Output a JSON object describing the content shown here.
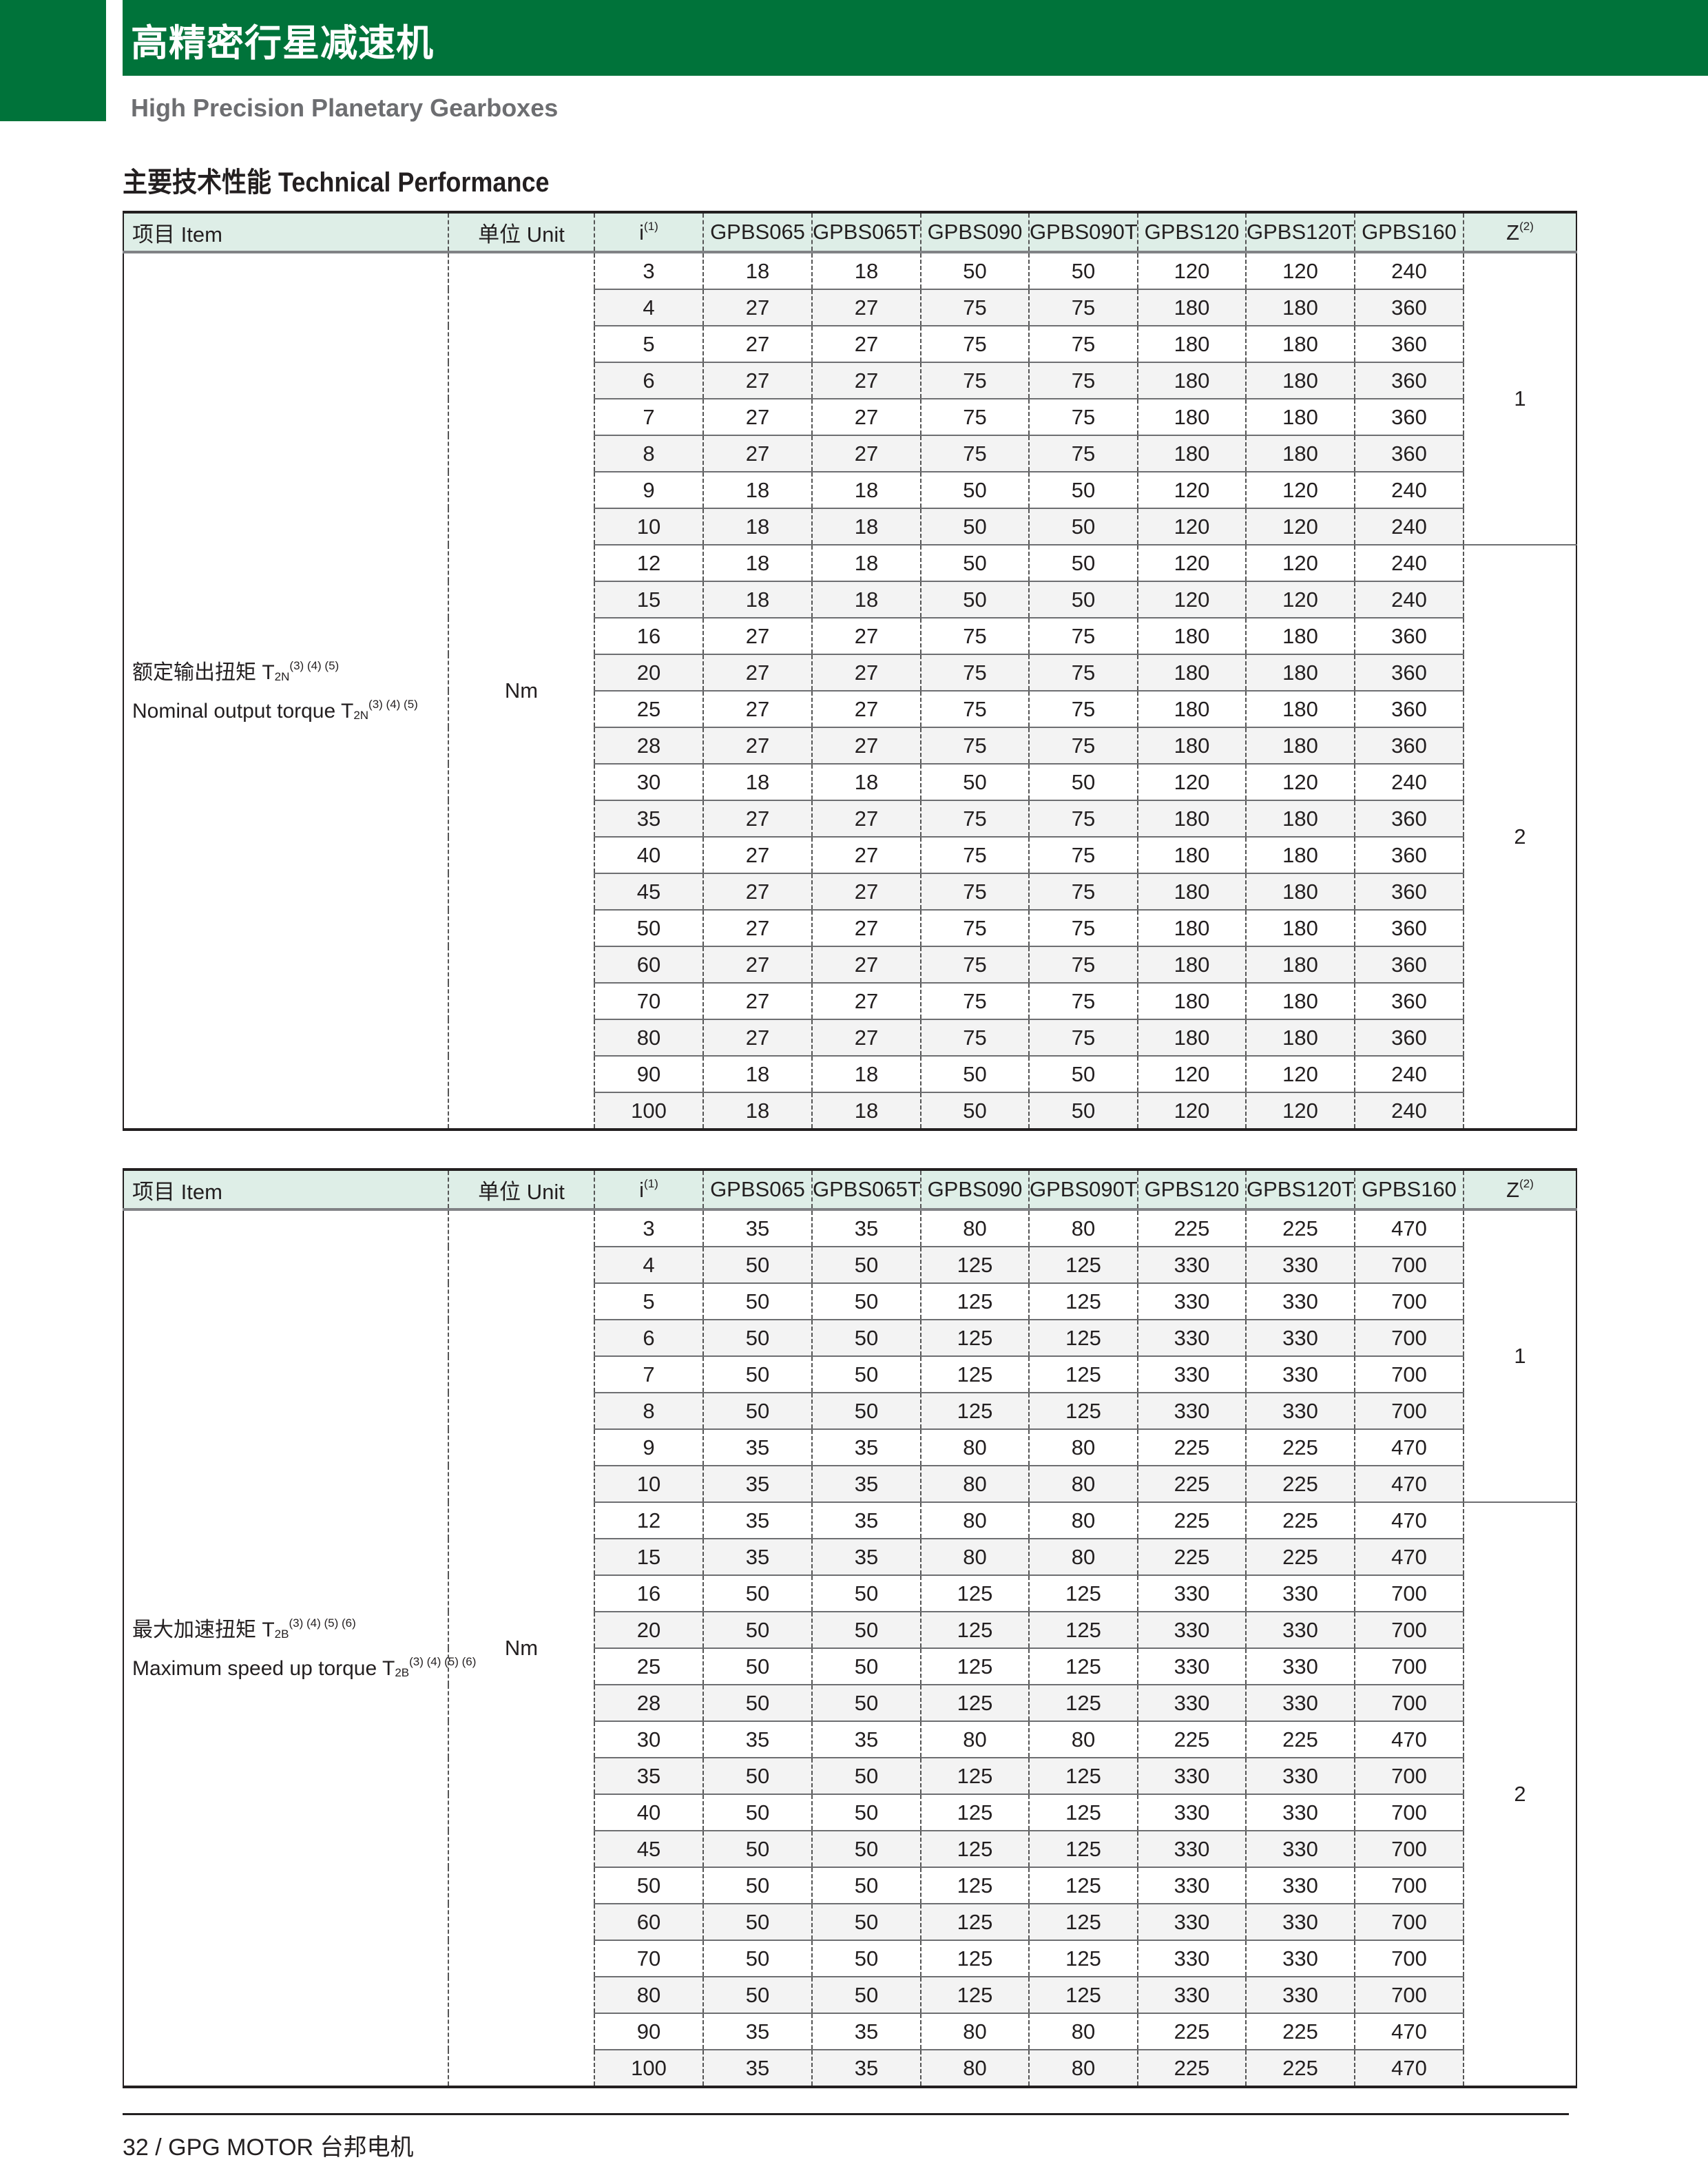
{
  "header": {
    "title_cn": "高精密行星减速机",
    "subtitle": "High Precision Planetary Gearboxes",
    "section_title": "主要技术性能 Technical Performance"
  },
  "colors": {
    "brand_green": "#00733a",
    "header_row_bg": "#deeee7",
    "stripe_bg": "#f3f3f3"
  },
  "columns": {
    "item": "项目 Item",
    "unit": "单位 Unit",
    "ratio": "i",
    "ratio_note": "(1)",
    "models": [
      "GPBS065",
      "GPBS065T",
      "GPBS090",
      "GPBS090T",
      "GPBS120",
      "GPBS120T",
      "GPBS160"
    ],
    "z": "Z",
    "z_note": "(2)"
  },
  "tables": [
    {
      "item_cn": "额定输出扭矩 T",
      "item_cn_sub": "2N",
      "item_cn_notes": "(3) (4) (5)",
      "item_en": "Nominal output torque T",
      "item_en_sub": "2N",
      "item_en_notes": "(3) (4) (5)",
      "unit": "Nm",
      "z_groups": [
        {
          "value": "1",
          "rows": 8
        },
        {
          "value": "2",
          "rows": 16
        }
      ],
      "rows": [
        {
          "i": "3",
          "v": [
            "18",
            "18",
            "50",
            "50",
            "120",
            "120",
            "240"
          ]
        },
        {
          "i": "4",
          "v": [
            "27",
            "27",
            "75",
            "75",
            "180",
            "180",
            "360"
          ]
        },
        {
          "i": "5",
          "v": [
            "27",
            "27",
            "75",
            "75",
            "180",
            "180",
            "360"
          ]
        },
        {
          "i": "6",
          "v": [
            "27",
            "27",
            "75",
            "75",
            "180",
            "180",
            "360"
          ]
        },
        {
          "i": "7",
          "v": [
            "27",
            "27",
            "75",
            "75",
            "180",
            "180",
            "360"
          ]
        },
        {
          "i": "8",
          "v": [
            "27",
            "27",
            "75",
            "75",
            "180",
            "180",
            "360"
          ]
        },
        {
          "i": "9",
          "v": [
            "18",
            "18",
            "50",
            "50",
            "120",
            "120",
            "240"
          ]
        },
        {
          "i": "10",
          "v": [
            "18",
            "18",
            "50",
            "50",
            "120",
            "120",
            "240"
          ]
        },
        {
          "i": "12",
          "v": [
            "18",
            "18",
            "50",
            "50",
            "120",
            "120",
            "240"
          ]
        },
        {
          "i": "15",
          "v": [
            "18",
            "18",
            "50",
            "50",
            "120",
            "120",
            "240"
          ]
        },
        {
          "i": "16",
          "v": [
            "27",
            "27",
            "75",
            "75",
            "180",
            "180",
            "360"
          ]
        },
        {
          "i": "20",
          "v": [
            "27",
            "27",
            "75",
            "75",
            "180",
            "180",
            "360"
          ]
        },
        {
          "i": "25",
          "v": [
            "27",
            "27",
            "75",
            "75",
            "180",
            "180",
            "360"
          ]
        },
        {
          "i": "28",
          "v": [
            "27",
            "27",
            "75",
            "75",
            "180",
            "180",
            "360"
          ]
        },
        {
          "i": "30",
          "v": [
            "18",
            "18",
            "50",
            "50",
            "120",
            "120",
            "240"
          ]
        },
        {
          "i": "35",
          "v": [
            "27",
            "27",
            "75",
            "75",
            "180",
            "180",
            "360"
          ]
        },
        {
          "i": "40",
          "v": [
            "27",
            "27",
            "75",
            "75",
            "180",
            "180",
            "360"
          ]
        },
        {
          "i": "45",
          "v": [
            "27",
            "27",
            "75",
            "75",
            "180",
            "180",
            "360"
          ]
        },
        {
          "i": "50",
          "v": [
            "27",
            "27",
            "75",
            "75",
            "180",
            "180",
            "360"
          ]
        },
        {
          "i": "60",
          "v": [
            "27",
            "27",
            "75",
            "75",
            "180",
            "180",
            "360"
          ]
        },
        {
          "i": "70",
          "v": [
            "27",
            "27",
            "75",
            "75",
            "180",
            "180",
            "360"
          ]
        },
        {
          "i": "80",
          "v": [
            "27",
            "27",
            "75",
            "75",
            "180",
            "180",
            "360"
          ]
        },
        {
          "i": "90",
          "v": [
            "18",
            "18",
            "50",
            "50",
            "120",
            "120",
            "240"
          ]
        },
        {
          "i": "100",
          "v": [
            "18",
            "18",
            "50",
            "50",
            "120",
            "120",
            "240"
          ]
        }
      ]
    },
    {
      "item_cn": "最大加速扭矩 T",
      "item_cn_sub": "2B",
      "item_cn_notes": "(3) (4) (5) (6)",
      "item_en": "Maximum speed up torque T",
      "item_en_sub": "2B",
      "item_en_notes": "(3) (4) (5) (6)",
      "unit": "Nm",
      "z_groups": [
        {
          "value": "1",
          "rows": 8
        },
        {
          "value": "2",
          "rows": 16
        }
      ],
      "rows": [
        {
          "i": "3",
          "v": [
            "35",
            "35",
            "80",
            "80",
            "225",
            "225",
            "470"
          ]
        },
        {
          "i": "4",
          "v": [
            "50",
            "50",
            "125",
            "125",
            "330",
            "330",
            "700"
          ]
        },
        {
          "i": "5",
          "v": [
            "50",
            "50",
            "125",
            "125",
            "330",
            "330",
            "700"
          ]
        },
        {
          "i": "6",
          "v": [
            "50",
            "50",
            "125",
            "125",
            "330",
            "330",
            "700"
          ]
        },
        {
          "i": "7",
          "v": [
            "50",
            "50",
            "125",
            "125",
            "330",
            "330",
            "700"
          ]
        },
        {
          "i": "8",
          "v": [
            "50",
            "50",
            "125",
            "125",
            "330",
            "330",
            "700"
          ]
        },
        {
          "i": "9",
          "v": [
            "35",
            "35",
            "80",
            "80",
            "225",
            "225",
            "470"
          ]
        },
        {
          "i": "10",
          "v": [
            "35",
            "35",
            "80",
            "80",
            "225",
            "225",
            "470"
          ]
        },
        {
          "i": "12",
          "v": [
            "35",
            "35",
            "80",
            "80",
            "225",
            "225",
            "470"
          ]
        },
        {
          "i": "15",
          "v": [
            "35",
            "35",
            "80",
            "80",
            "225",
            "225",
            "470"
          ]
        },
        {
          "i": "16",
          "v": [
            "50",
            "50",
            "125",
            "125",
            "330",
            "330",
            "700"
          ]
        },
        {
          "i": "20",
          "v": [
            "50",
            "50",
            "125",
            "125",
            "330",
            "330",
            "700"
          ]
        },
        {
          "i": "25",
          "v": [
            "50",
            "50",
            "125",
            "125",
            "330",
            "330",
            "700"
          ]
        },
        {
          "i": "28",
          "v": [
            "50",
            "50",
            "125",
            "125",
            "330",
            "330",
            "700"
          ]
        },
        {
          "i": "30",
          "v": [
            "35",
            "35",
            "80",
            "80",
            "225",
            "225",
            "470"
          ]
        },
        {
          "i": "35",
          "v": [
            "50",
            "50",
            "125",
            "125",
            "330",
            "330",
            "700"
          ]
        },
        {
          "i": "40",
          "v": [
            "50",
            "50",
            "125",
            "125",
            "330",
            "330",
            "700"
          ]
        },
        {
          "i": "45",
          "v": [
            "50",
            "50",
            "125",
            "125",
            "330",
            "330",
            "700"
          ]
        },
        {
          "i": "50",
          "v": [
            "50",
            "50",
            "125",
            "125",
            "330",
            "330",
            "700"
          ]
        },
        {
          "i": "60",
          "v": [
            "50",
            "50",
            "125",
            "125",
            "330",
            "330",
            "700"
          ]
        },
        {
          "i": "70",
          "v": [
            "50",
            "50",
            "125",
            "125",
            "330",
            "330",
            "700"
          ]
        },
        {
          "i": "80",
          "v": [
            "50",
            "50",
            "125",
            "125",
            "330",
            "330",
            "700"
          ]
        },
        {
          "i": "90",
          "v": [
            "35",
            "35",
            "80",
            "80",
            "225",
            "225",
            "470"
          ]
        },
        {
          "i": "100",
          "v": [
            "35",
            "35",
            "80",
            "80",
            "225",
            "225",
            "470"
          ]
        }
      ]
    }
  ],
  "footer": {
    "text": "32  /  GPG MOTOR 台邦电机"
  }
}
